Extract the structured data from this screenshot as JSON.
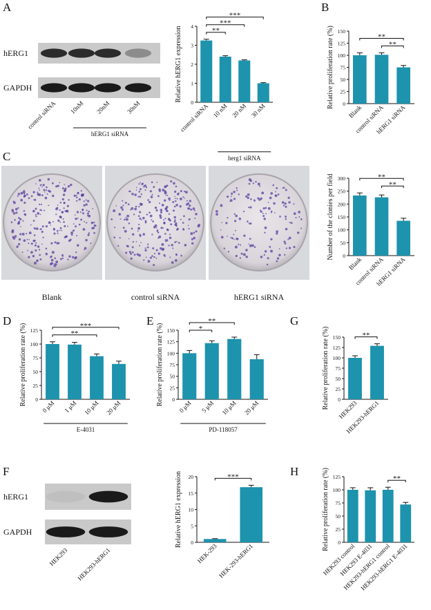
{
  "blots": [
    {
      "panel": "A",
      "rows": [
        "hERG1",
        "GAPDH"
      ],
      "lanes": [
        "control siRNA",
        "10nM",
        "20nM",
        "30nM"
      ],
      "group": {
        "label": "hERG1 siRNA",
        "lanes": [
          "10nM",
          "20nM",
          "30nM"
        ]
      }
    },
    {
      "panel": "F",
      "rows": [
        "hERG1",
        "GAPDH"
      ],
      "lanes": [
        "HEK293",
        "HEK293-hERG1"
      ]
    }
  ],
  "photos": {
    "panel": "C",
    "captions": [
      "Blank",
      "control siRNA",
      "hERG1 siRNA"
    ]
  },
  "chart_data": [
    {
      "type": "bar",
      "ylabel": "Relative hERG1 expression",
      "categories": [
        "control siRNA",
        "10 nM",
        "20 nM",
        "30 nM"
      ],
      "values": [
        3.25,
        2.4,
        2.2,
        1.0
      ],
      "errors": [
        0.07,
        0.05,
        0.03,
        0.03
      ],
      "ylim": [
        0,
        4
      ],
      "yticks": [
        0,
        1,
        2,
        3,
        4
      ],
      "color": "#1d93ad",
      "group": {
        "label": "herg1 siRNA",
        "categories": [
          "10 nM",
          "20 nM",
          "30 nM"
        ]
      },
      "annotations": [
        {
          "text": "**",
          "between": [
            "control siRNA",
            "10 nM"
          ]
        },
        {
          "text": "***",
          "between": [
            "control siRNA",
            "20 nM"
          ]
        },
        {
          "text": "***",
          "between": [
            "control siRNA",
            "30 nM"
          ]
        }
      ]
    },
    {
      "type": "bar",
      "panel": "B",
      "ylabel": "Relative proliferation rate (%)",
      "categories": [
        "Blank",
        "control siRNA",
        "hERG1 siRNA"
      ],
      "values": [
        100,
        101,
        75
      ],
      "errors": [
        5,
        4,
        4
      ],
      "ylim": [
        0,
        150
      ],
      "yticks": [
        0,
        25,
        50,
        75,
        100,
        125,
        150
      ],
      "color": "#1d93ad",
      "annotations": [
        {
          "text": "**",
          "between": [
            "control siRNA",
            "hERG1 siRNA"
          ]
        },
        {
          "text": "**",
          "between": [
            "Blank",
            "hERG1 siRNA"
          ]
        }
      ]
    },
    {
      "type": "bar",
      "ylabel": "Number of the clonies per field",
      "categories": [
        "Blank",
        "control siRNA",
        "hERG1 siRNA"
      ],
      "values": [
        233,
        226,
        135
      ],
      "errors": [
        10,
        9,
        10
      ],
      "ylim": [
        0,
        300
      ],
      "yticks": [
        0,
        50,
        100,
        150,
        200,
        250,
        300
      ],
      "color": "#1d93ad",
      "annotations": [
        {
          "text": "**",
          "between": [
            "control siRNA",
            "hERG1 siRNA"
          ]
        },
        {
          "text": "**",
          "between": [
            "Blank",
            "hERG1 siRNA"
          ]
        }
      ]
    },
    {
      "type": "bar",
      "panel": "D",
      "ylabel": "Relative proliferation rate (%)",
      "categories": [
        "0 μM",
        "1 μM",
        "10 μM",
        "20 μM"
      ],
      "values": [
        100,
        99,
        78,
        64
      ],
      "errors": [
        4,
        4,
        4,
        5
      ],
      "ylim": [
        0,
        125
      ],
      "yticks": [
        0,
        25,
        50,
        75,
        100,
        125
      ],
      "color": "#1d93ad",
      "group": {
        "label": "E-4031",
        "categories": [
          "0 μM",
          "1 μM",
          "10 μM",
          "20 μM"
        ]
      },
      "annotations": [
        {
          "text": "**",
          "between": [
            "0 μM",
            "10 μM"
          ]
        },
        {
          "text": "***",
          "between": [
            "0 μM",
            "20 μM"
          ]
        }
      ]
    },
    {
      "type": "bar",
      "panel": "E",
      "ylabel": "Relative proliferation rate (%)",
      "categories": [
        "0 μM",
        "5 μM",
        "10 μM",
        "20 μM"
      ],
      "values": [
        100,
        122,
        131,
        87
      ],
      "errors": [
        6,
        5,
        4,
        10
      ],
      "ylim": [
        0,
        150
      ],
      "yticks": [
        0,
        25,
        50,
        75,
        100,
        125,
        150
      ],
      "color": "#1d93ad",
      "group": {
        "label": "PD-118057",
        "categories": [
          "0 μM",
          "5 μM",
          "10 μM",
          "20 μM"
        ]
      },
      "annotations": [
        {
          "text": "*",
          "between": [
            "0 μM",
            "5 μM"
          ]
        },
        {
          "text": "**",
          "between": [
            "0 μM",
            "10 μM"
          ]
        }
      ]
    },
    {
      "type": "bar",
      "panel": "G",
      "ylabel": "Relative proliferation rate (%)",
      "categories": [
        "HEK293",
        "HEK293-hERG1"
      ],
      "values": [
        100,
        129
      ],
      "errors": [
        5,
        5
      ],
      "ylim": [
        0,
        150
      ],
      "yticks": [
        0,
        25,
        50,
        75,
        100,
        125,
        150
      ],
      "color": "#1d93ad",
      "annotations": [
        {
          "text": "**",
          "between": [
            "HEK293",
            "HEK293-hERG1"
          ]
        }
      ]
    },
    {
      "type": "bar",
      "ylabel": "Relative hERG1 expression",
      "categories": [
        "HEK-293",
        "HEK-293-hERG1"
      ],
      "values": [
        1,
        16.8
      ],
      "errors": [
        0.1,
        0.6
      ],
      "ylim": [
        0,
        20
      ],
      "yticks": [
        0,
        5,
        10,
        15,
        20
      ],
      "color": "#1d93ad",
      "annotations": [
        {
          "text": "***",
          "between": [
            "HEK-293",
            "HEK-293-hERG1"
          ]
        }
      ]
    },
    {
      "type": "bar",
      "panel": "H",
      "ylabel": "Relative proliferation rate (%)",
      "categories": [
        "HEK293 control",
        "HEK293 E-4031",
        "HEK293-hERG1 control",
        "HEK293-hERG1 E-4031"
      ],
      "values": [
        100,
        99,
        100,
        72
      ],
      "errors": [
        4,
        5,
        5,
        4
      ],
      "ylim": [
        0,
        125
      ],
      "yticks": [
        0,
        25,
        50,
        75,
        100,
        125
      ],
      "color": "#1d93ad",
      "annotations": [
        {
          "text": "**",
          "between": [
            "HEK293-hERG1 control",
            "HEK293-hERG1 E-4031"
          ]
        }
      ]
    }
  ]
}
